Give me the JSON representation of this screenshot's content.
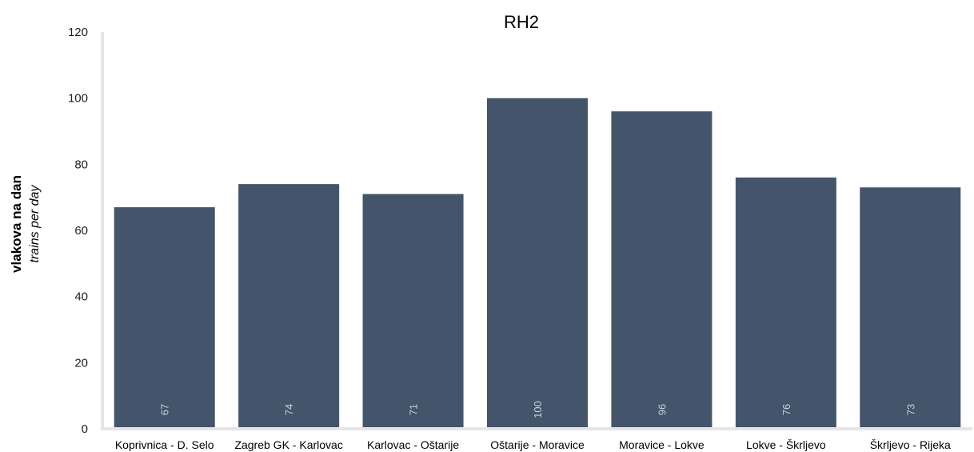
{
  "chart_data": {
    "type": "bar",
    "title": "RH2",
    "ylabel": "vlakova na dan",
    "ylabel_sub": "trains per day",
    "categories": [
      "Koprivnica - D. Selo",
      "Zagreb GK - Karlovac",
      "Karlovac - Oštarije",
      "Oštarije - Moravice",
      "Moravice - Lokve",
      "Lokve - Škrljevo",
      "Škrljevo - Rijeka"
    ],
    "values": [
      67,
      74,
      71,
      100,
      96,
      76,
      73
    ],
    "ylim": [
      0,
      120
    ],
    "yticks": [
      0,
      20,
      40,
      60,
      80,
      100,
      120
    ],
    "grid": false,
    "bar_color": "#44546a",
    "axis_color": "#e6e6e6"
  }
}
